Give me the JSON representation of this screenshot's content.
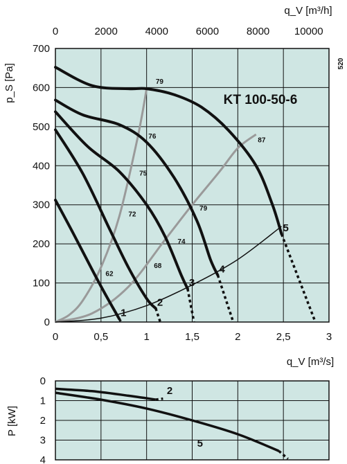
{
  "colors": {
    "plot_bg": "#cfe6e3",
    "grid": "#111111",
    "curve": "#111111",
    "efficiency": "#9a9a9a",
    "text": "#111111"
  },
  "chart_data": [
    {
      "type": "line",
      "title": "KT   100-50-6",
      "side_label": "520",
      "ylabel": "p_S [Pa]",
      "xlabel": "q_V [m³/s]",
      "x2label": "q_V [m³/h]",
      "x_ticks": [
        "0",
        "0,5",
        "1",
        "1,5",
        "2",
        "2,5",
        "3"
      ],
      "x_tick_values": [
        0,
        0.5,
        1,
        1.5,
        2,
        2.5,
        3
      ],
      "x2_ticks": [
        "0",
        "2000",
        "4000",
        "6000",
        "8000",
        "10000"
      ],
      "x2_tick_values": [
        0,
        2000,
        4000,
        6000,
        8000,
        10000
      ],
      "y_ticks": [
        "0",
        "100",
        "200",
        "300",
        "400",
        "500",
        "600",
        "700"
      ],
      "y_tick_values": [
        0,
        100,
        200,
        300,
        400,
        500,
        600,
        700
      ],
      "xlim": [
        0,
        3
      ],
      "ylim": [
        0,
        700
      ],
      "grid": true,
      "series": [
        {
          "name": "1",
          "points": [
            [
              0,
              312
            ],
            [
              0.2,
              225
            ],
            [
              0.4,
              135
            ],
            [
              0.55,
              70
            ],
            [
              0.7,
              8
            ]
          ],
          "dashed": [
            [
              0.7,
              8
            ],
            [
              0.72,
              0
            ]
          ]
        },
        {
          "name": "2",
          "points": [
            [
              0,
              492
            ],
            [
              0.3,
              380
            ],
            [
              0.6,
              235
            ],
            [
              0.8,
              140
            ],
            [
              1.0,
              60
            ],
            [
              1.1,
              35
            ]
          ],
          "dashed": [
            [
              1.1,
              35
            ],
            [
              1.15,
              0
            ]
          ]
        },
        {
          "name": "3",
          "points": [
            [
              0,
              538
            ],
            [
              0.35,
              450
            ],
            [
              0.7,
              385
            ],
            [
              1.0,
              300
            ],
            [
              1.2,
              220
            ],
            [
              1.38,
              120
            ],
            [
              1.45,
              85
            ]
          ],
          "dashed": [
            [
              1.45,
              85
            ],
            [
              1.52,
              0
            ]
          ]
        },
        {
          "name": "4",
          "points": [
            [
              0,
              568
            ],
            [
              0.3,
              530
            ],
            [
              0.7,
              505
            ],
            [
              1.0,
              460
            ],
            [
              1.3,
              370
            ],
            [
              1.55,
              260
            ],
            [
              1.7,
              160
            ],
            [
              1.78,
              120
            ]
          ],
          "dashed": [
            [
              1.78,
              120
            ],
            [
              1.95,
              0
            ]
          ]
        },
        {
          "name": "5",
          "points": [
            [
              0,
              652
            ],
            [
              0.4,
              605
            ],
            [
              0.8,
              597
            ],
            [
              1.0,
              597
            ],
            [
              1.3,
              582
            ],
            [
              1.6,
              550
            ],
            [
              1.9,
              490
            ],
            [
              2.2,
              400
            ],
            [
              2.38,
              300
            ],
            [
              2.48,
              225
            ]
          ],
          "dashed": [
            [
              2.48,
              225
            ],
            [
              2.85,
              0
            ]
          ]
        }
      ],
      "efficiency_curves": [
        {
          "points": [
            [
              0,
              0
            ],
            [
              0.15,
              18
            ],
            [
              0.3,
              55
            ],
            [
              0.5,
              140
            ],
            [
              0.7,
              270
            ],
            [
              0.9,
              470
            ],
            [
              1.0,
              597
            ]
          ]
        },
        {
          "points": [
            [
              0,
              0
            ],
            [
              0.4,
              22
            ],
            [
              0.8,
              90
            ],
            [
              1.2,
              210
            ],
            [
              1.5,
              300
            ],
            [
              1.8,
              385
            ],
            [
              2.0,
              445
            ],
            [
              2.2,
              480
            ]
          ]
        }
      ],
      "system_curve": {
        "points": [
          [
            0,
            0
          ],
          [
            0.5,
            10
          ],
          [
            1.0,
            42
          ],
          [
            1.5,
            95
          ],
          [
            2.0,
            160
          ],
          [
            2.48,
            245
          ]
        ]
      },
      "efficiency_labels": [
        {
          "text": "79",
          "x": 1.1,
          "y": 610
        },
        {
          "text": "76",
          "x": 1.02,
          "y": 470
        },
        {
          "text": "75",
          "x": 0.92,
          "y": 375
        },
        {
          "text": "72",
          "x": 0.8,
          "y": 270
        },
        {
          "text": "62",
          "x": 0.55,
          "y": 118
        },
        {
          "text": "68",
          "x": 1.08,
          "y": 138
        },
        {
          "text": "74",
          "x": 1.34,
          "y": 200
        },
        {
          "text": "79",
          "x": 1.58,
          "y": 285
        },
        {
          "text": "87",
          "x": 2.22,
          "y": 460
        }
      ]
    },
    {
      "type": "line",
      "ylabel": "P [kW]",
      "x_tick_values": [
        0,
        0.5,
        1,
        1.5,
        2,
        2.5,
        3
      ],
      "y_ticks": [
        "0",
        "1",
        "2",
        "3",
        "4"
      ],
      "y_tick_values": [
        0,
        1,
        2,
        3,
        4
      ],
      "ylim": [
        0,
        4
      ],
      "y_inverted": true,
      "grid": true,
      "series": [
        {
          "name": "2",
          "points": [
            [
              0,
              0.4
            ],
            [
              0.4,
              0.52
            ],
            [
              0.8,
              0.75
            ],
            [
              1.1,
              0.95
            ]
          ],
          "dashed": [
            [
              1.1,
              0.95
            ],
            [
              1.18,
              0.9
            ]
          ]
        },
        {
          "name": "5",
          "points": [
            [
              0,
              0.6
            ],
            [
              0.5,
              0.95
            ],
            [
              1.0,
              1.4
            ],
            [
              1.5,
              2.0
            ],
            [
              2.0,
              2.7
            ],
            [
              2.45,
              3.55
            ]
          ],
          "dashed": [
            [
              2.45,
              3.55
            ],
            [
              2.55,
              3.95
            ]
          ]
        }
      ]
    }
  ]
}
